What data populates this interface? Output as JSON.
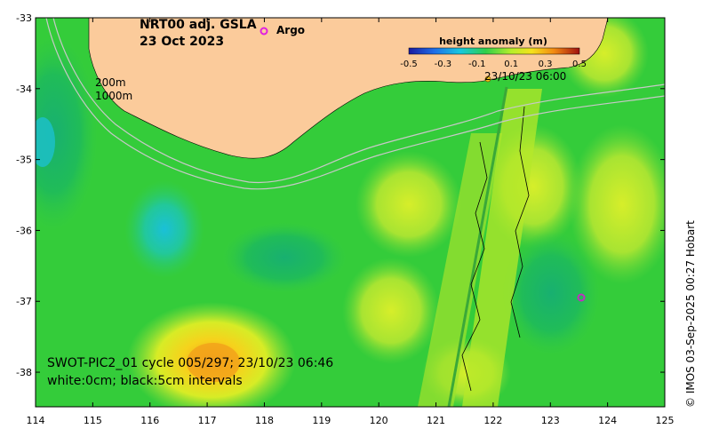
{
  "map": {
    "title": "NRT00 adj. GSLA",
    "date": "23 Oct 2023",
    "legend_argo": "Argo",
    "isobath_200": "200m",
    "isobath_1000": "1000m",
    "swot_caption": "SWOT-PIC2_01 cycle 005/297; 23/10/23 06:46",
    "contour_caption": "white:0cm; black:5cm intervals",
    "overpass_label": "23/10/23 06:00",
    "credit": "© IMOS 03-Sep-2025 00:27 Hobart",
    "x_ticks": [
      "114",
      "115",
      "116",
      "117",
      "118",
      "119",
      "120",
      "121",
      "122",
      "123",
      "124",
      "125"
    ],
    "y_ticks": [
      "-33",
      "-34",
      "-35",
      "-36",
      "-37",
      "-38"
    ],
    "colorbar": {
      "title": "height anomaly (m)",
      "labels": [
        "-0.5",
        "-0.3",
        "-0.1",
        "0.1",
        "0.3",
        "0.5"
      ]
    },
    "colors": {
      "land": "#fbcb9b",
      "ocean_base": "#3fd03a",
      "argo_marker": "#e020e0"
    }
  }
}
